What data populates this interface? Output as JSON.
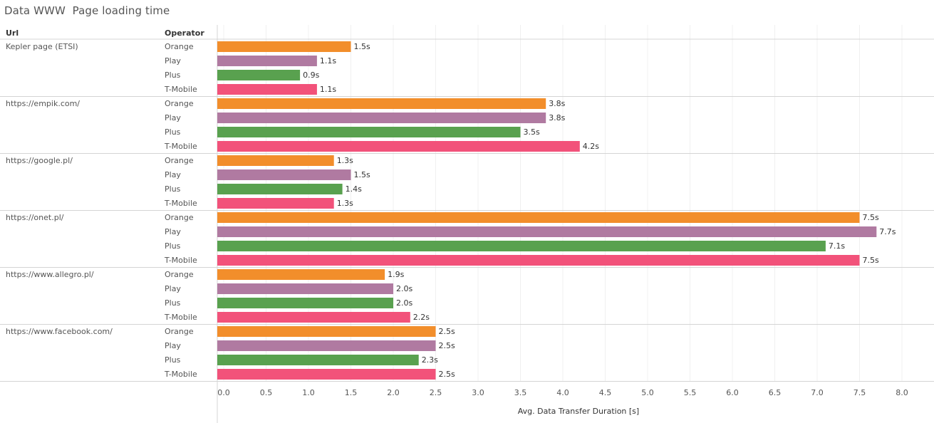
{
  "title": "Data WWW  Page loading time",
  "chart_data": {
    "type": "bar",
    "orientation": "horizontal",
    "row_headers": [
      "Url",
      "Operator"
    ],
    "xlabel": "Avg. Data Transfer Duration [s]",
    "xlim": [
      0,
      8
    ],
    "xticks": [
      "0.0",
      "0.5",
      "1.0",
      "1.5",
      "2.0",
      "2.5",
      "3.0",
      "3.5",
      "4.0",
      "4.5",
      "5.0",
      "5.5",
      "6.0",
      "6.5",
      "7.0",
      "7.5",
      "8.0"
    ],
    "xtick_values": [
      0,
      0.5,
      1,
      1.5,
      2,
      2.5,
      3,
      3.5,
      4,
      4.5,
      5,
      5.5,
      6,
      6.5,
      7,
      7.5,
      8
    ],
    "value_suffix": "s",
    "grid": true,
    "operators": [
      "Orange",
      "Play",
      "Plus",
      "T-Mobile"
    ],
    "colors": {
      "Orange": "#f28e2b",
      "Play": "#b07aa1",
      "Plus": "#59a14f",
      "T-Mobile": "#f2527a"
    },
    "groups": [
      {
        "url": "Kepler page (ETSI)",
        "values": [
          1.5,
          1.1,
          0.9,
          1.1
        ]
      },
      {
        "url": "https://empik.com/",
        "values": [
          3.8,
          3.8,
          3.5,
          4.2
        ]
      },
      {
        "url": "https://google.pl/",
        "values": [
          1.3,
          1.5,
          1.4,
          1.3
        ]
      },
      {
        "url": "https://onet.pl/",
        "values": [
          7.5,
          7.7,
          7.1,
          7.5
        ]
      },
      {
        "url": "https://www.allegro.pl/",
        "values": [
          1.9,
          2.0,
          2.0,
          2.2
        ]
      },
      {
        "url": "https://www.facebook.com/",
        "values": [
          2.5,
          2.5,
          2.3,
          2.5
        ]
      }
    ]
  }
}
